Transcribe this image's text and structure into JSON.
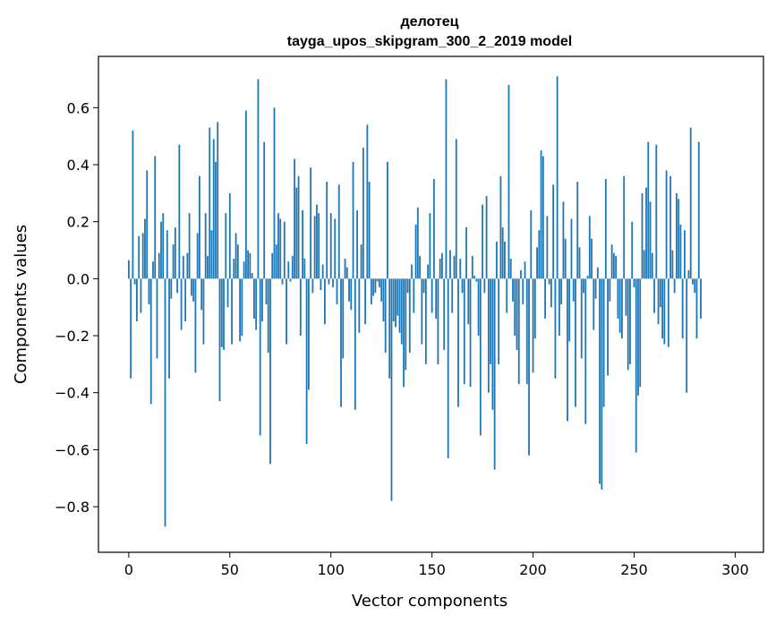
{
  "chart_data": {
    "type": "bar",
    "title": "делотец",
    "subtitle": "tayga_upos_skipgram_300_2_2019 model",
    "xlabel": "Vector components",
    "ylabel": "Components values",
    "xlim": [
      -15,
      314
    ],
    "ylim": [
      -0.96,
      0.78
    ],
    "xticks": [
      0,
      50,
      100,
      150,
      200,
      250,
      300
    ],
    "xtick_labels": [
      "0",
      "50",
      "100",
      "150",
      "200",
      "250",
      "300"
    ],
    "yticks": [
      -0.8,
      -0.6,
      -0.4,
      -0.2,
      0.0,
      0.2,
      0.4,
      0.6
    ],
    "ytick_labels": [
      "−0.8",
      "−0.6",
      "−0.4",
      "−0.2",
      "0.0",
      "0.2",
      "0.4",
      "0.6"
    ],
    "bar_color": "#1f77b4",
    "grid": false,
    "values": [
      0.065,
      -0.35,
      0.52,
      -0.02,
      -0.15,
      0.15,
      -0.12,
      0.16,
      0.21,
      0.38,
      -0.09,
      -0.44,
      0.06,
      0.43,
      -0.28,
      0.09,
      0.2,
      0.23,
      -0.87,
      0.17,
      -0.35,
      -0.07,
      0.12,
      0.18,
      -0.05,
      0.47,
      -0.18,
      0.08,
      -0.15,
      0.09,
      0.23,
      -0.06,
      -0.08,
      -0.33,
      0.16,
      0.36,
      -0.11,
      -0.23,
      0.23,
      0.08,
      0.53,
      0.17,
      0.49,
      0.41,
      0.55,
      -0.43,
      -0.24,
      -0.25,
      0.23,
      -0.1,
      0.3,
      -0.23,
      0.07,
      0.16,
      0.12,
      -0.22,
      -0.2,
      0.06,
      0.59,
      0.1,
      0.09,
      0.02,
      -0.14,
      -0.18,
      0.7,
      -0.55,
      -0.15,
      0.48,
      -0.09,
      -0.26,
      -0.65,
      0.09,
      0.6,
      0.12,
      0.23,
      0.21,
      -0.02,
      0.2,
      -0.23,
      0.06,
      -0.01,
      0.08,
      0.42,
      0.32,
      0.36,
      -0.2,
      0.24,
      0.07,
      -0.58,
      -0.39,
      0.39,
      -0.05,
      0.22,
      0.26,
      0.23,
      -0.04,
      0.05,
      -0.16,
      0.34,
      -0.02,
      0.23,
      -0.03,
      0.21,
      -0.09,
      0.33,
      -0.45,
      -0.28,
      0.07,
      0.04,
      -0.08,
      -0.11,
      0.41,
      -0.46,
      0.24,
      -0.19,
      0.12,
      0.46,
      -0.16,
      0.54,
      0.34,
      -0.09,
      -0.06,
      -0.05,
      -0.01,
      -0.03,
      -0.08,
      -0.15,
      -0.26,
      0.41,
      -0.35,
      -0.78,
      -0.15,
      -0.17,
      -0.13,
      -0.19,
      -0.23,
      -0.38,
      -0.32,
      -0.05,
      -0.26,
      0.05,
      -0.12,
      0.19,
      0.25,
      0.08,
      -0.23,
      -0.05,
      -0.3,
      0.05,
      0.23,
      -0.12,
      0.35,
      -0.14,
      -0.3,
      0.07,
      0.09,
      -0.25,
      0.7,
      -0.63,
      0.1,
      -0.12,
      0.08,
      0.49,
      -0.45,
      0.07,
      -0.05,
      -0.37,
      0.18,
      -0.16,
      -0.38,
      0.08,
      0.01,
      -0.01,
      -0.2,
      -0.55,
      0.26,
      -0.05,
      0.29,
      -0.4,
      -0.3,
      -0.46,
      -0.67,
      0.13,
      -0.3,
      0.36,
      0.18,
      0.13,
      -0.12,
      0.68,
      0.07,
      -0.08,
      -0.2,
      -0.25,
      -0.37,
      0.03,
      -0.09,
      0.06,
      -0.37,
      -0.62,
      0.24,
      -0.33,
      -0.21,
      0.11,
      0.17,
      0.45,
      0.43,
      -0.14,
      0.22,
      -0.02,
      -0.1,
      0.33,
      -0.35,
      0.71,
      -0.2,
      -0.09,
      0.27,
      0.14,
      -0.5,
      -0.22,
      0.21,
      -0.08,
      -0.45,
      0.34,
      0.11,
      -0.28,
      -0.05,
      -0.51,
      0.01,
      0.22,
      0.14,
      -0.18,
      -0.07,
      0.04,
      -0.72,
      -0.74,
      -0.45,
      0.35,
      -0.34,
      -0.08,
      0.12,
      0.09,
      0.08,
      -0.14,
      -0.19,
      -0.21,
      0.36,
      -0.13,
      -0.32,
      -0.3,
      0.2,
      -0.03,
      -0.61,
      -0.41,
      -0.38,
      0.3,
      0.1,
      0.32,
      0.48,
      0.27,
      0.09,
      -0.12,
      0.47,
      -0.16,
      -0.1,
      -0.21,
      -0.23,
      0.38,
      -0.24,
      0.36,
      0.1,
      -0.05,
      0.3,
      0.28,
      0.19,
      -0.21,
      0.17,
      -0.4,
      0.03,
      0.53,
      -0.02,
      -0.05,
      -0.21,
      0.48,
      -0.14
    ]
  }
}
